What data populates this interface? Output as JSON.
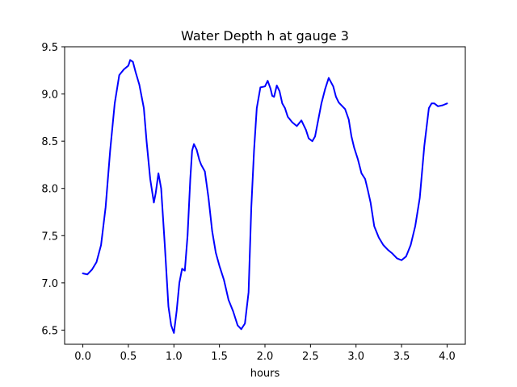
{
  "chart_data": {
    "type": "line",
    "title": "Water Depth h at gauge 3",
    "xlabel": "hours",
    "ylabel": "",
    "xlim": [
      -0.2,
      4.2
    ],
    "ylim": [
      6.35,
      9.5
    ],
    "xticks": [
      0.0,
      0.5,
      1.0,
      1.5,
      2.0,
      2.5,
      3.0,
      3.5,
      4.0
    ],
    "xtick_labels": [
      "0.0",
      "0.5",
      "1.0",
      "1.5",
      "2.0",
      "2.5",
      "3.0",
      "3.5",
      "4.0"
    ],
    "yticks": [
      6.5,
      7.0,
      7.5,
      8.0,
      8.5,
      9.0,
      9.5
    ],
    "ytick_labels": [
      "6.5",
      "7.0",
      "7.5",
      "8.0",
      "8.5",
      "9.0",
      "9.5"
    ],
    "grid": false,
    "legend": "none",
    "series": [
      {
        "color": "#0000ff",
        "x": [
          0.0,
          0.05,
          0.1,
          0.15,
          0.2,
          0.25,
          0.3,
          0.35,
          0.4,
          0.45,
          0.5,
          0.52,
          0.55,
          0.58,
          0.62,
          0.67,
          0.7,
          0.74,
          0.78,
          0.8,
          0.83,
          0.86,
          0.9,
          0.94,
          0.97,
          1.0,
          1.03,
          1.06,
          1.09,
          1.12,
          1.15,
          1.18,
          1.2,
          1.22,
          1.25,
          1.28,
          1.3,
          1.34,
          1.38,
          1.42,
          1.46,
          1.5,
          1.55,
          1.6,
          1.65,
          1.7,
          1.74,
          1.78,
          1.82,
          1.85,
          1.88,
          1.91,
          1.95,
          2.0,
          2.03,
          2.06,
          2.08,
          2.1,
          2.13,
          2.16,
          2.19,
          2.22,
          2.25,
          2.3,
          2.35,
          2.4,
          2.45,
          2.48,
          2.52,
          2.55,
          2.58,
          2.62,
          2.66,
          2.7,
          2.75,
          2.78,
          2.81,
          2.85,
          2.88,
          2.92,
          2.95,
          2.98,
          3.02,
          3.06,
          3.1,
          3.13,
          3.16,
          3.2,
          3.25,
          3.3,
          3.35,
          3.4,
          3.45,
          3.5,
          3.55,
          3.6,
          3.65,
          3.7,
          3.75,
          3.8,
          3.83,
          3.86,
          3.9,
          3.95,
          4.0
        ],
        "y": [
          7.1,
          7.09,
          7.14,
          7.22,
          7.4,
          7.8,
          8.4,
          8.9,
          9.2,
          9.26,
          9.3,
          9.36,
          9.34,
          9.23,
          9.1,
          8.85,
          8.5,
          8.1,
          7.85,
          7.95,
          8.16,
          8.0,
          7.4,
          6.75,
          6.55,
          6.47,
          6.7,
          7.0,
          7.15,
          7.13,
          7.5,
          8.1,
          8.4,
          8.47,
          8.41,
          8.3,
          8.25,
          8.18,
          7.9,
          7.55,
          7.32,
          7.18,
          7.03,
          6.82,
          6.7,
          6.55,
          6.51,
          6.57,
          6.9,
          7.8,
          8.4,
          8.85,
          9.07,
          9.08,
          9.14,
          9.06,
          8.98,
          8.97,
          9.09,
          9.03,
          8.9,
          8.85,
          8.76,
          8.7,
          8.66,
          8.72,
          8.62,
          8.53,
          8.5,
          8.55,
          8.7,
          8.9,
          9.05,
          9.17,
          9.08,
          8.97,
          8.91,
          8.87,
          8.84,
          8.73,
          8.55,
          8.43,
          8.31,
          8.16,
          8.1,
          7.98,
          7.85,
          7.6,
          7.48,
          7.4,
          7.35,
          7.31,
          7.26,
          7.24,
          7.28,
          7.4,
          7.6,
          7.9,
          8.45,
          8.85,
          8.9,
          8.9,
          8.87,
          8.88,
          8.9
        ]
      }
    ]
  }
}
